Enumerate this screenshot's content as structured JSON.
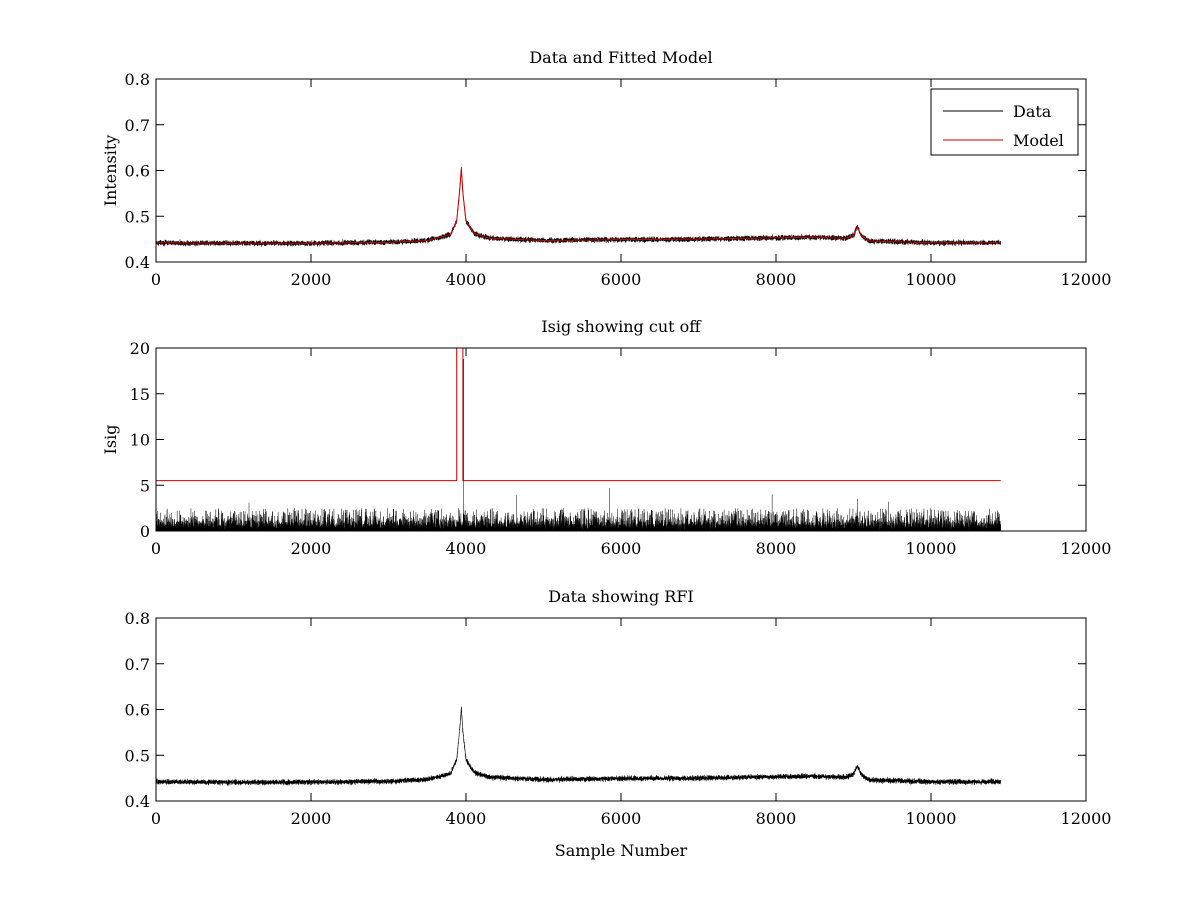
{
  "figure": {
    "background": "#ffffff",
    "colors": {
      "data": "#000000",
      "model": "#cc0000",
      "axes": "#000000"
    }
  },
  "chart_data": [
    {
      "id": "top",
      "type": "line",
      "title": "Data and Fitted Model",
      "xlabel": "",
      "ylabel": "Intensity",
      "xlim": [
        0,
        12000
      ],
      "ylim": [
        0.4,
        0.8
      ],
      "xticks": [
        0,
        2000,
        4000,
        6000,
        8000,
        10000,
        12000
      ],
      "xtick_labels": [
        "0",
        "2000",
        "4000",
        "6000",
        "8000",
        "10000",
        "12000"
      ],
      "yticks": [
        0.4,
        0.5,
        0.6,
        0.7,
        0.8
      ],
      "ytick_labels": [
        "0.4",
        "0.5",
        "0.6",
        "0.7",
        "0.8"
      ],
      "grid": false,
      "legend": {
        "placement": "top-right",
        "entries": [
          "Data",
          "Model"
        ]
      },
      "series": [
        {
          "name": "Data",
          "color": "#000000",
          "kind": "noisy",
          "n_points": 10900,
          "noise_amplitude": 0.005,
          "x": [
            0,
            1000,
            2000,
            3000,
            3500,
            3800,
            3880,
            3920,
            3940,
            3960,
            4000,
            4100,
            4300,
            5000,
            6000,
            7000,
            8000,
            8500,
            8900,
            9000,
            9050,
            9100,
            9200,
            10000,
            10900
          ],
          "y": [
            0.442,
            0.441,
            0.441,
            0.443,
            0.447,
            0.46,
            0.49,
            0.56,
            0.605,
            0.55,
            0.49,
            0.463,
            0.452,
            0.447,
            0.449,
            0.45,
            0.453,
            0.454,
            0.452,
            0.458,
            0.477,
            0.458,
            0.446,
            0.442,
            0.442
          ]
        },
        {
          "name": "Model",
          "color": "#cc0000",
          "kind": "smooth",
          "x": [
            0,
            1000,
            2000,
            3000,
            3500,
            3800,
            3880,
            3920,
            3940,
            3960,
            4000,
            4100,
            4300,
            5000,
            6000,
            7000,
            8000,
            8500,
            8900,
            9000,
            9050,
            9100,
            9200,
            10000,
            10900
          ],
          "y": [
            0.442,
            0.441,
            0.441,
            0.443,
            0.447,
            0.46,
            0.49,
            0.56,
            0.605,
            0.55,
            0.49,
            0.463,
            0.452,
            0.447,
            0.449,
            0.45,
            0.453,
            0.454,
            0.452,
            0.458,
            0.477,
            0.458,
            0.446,
            0.442,
            0.442
          ]
        }
      ]
    },
    {
      "id": "middle",
      "type": "line",
      "title": "Isig showing cut off",
      "xlabel": "",
      "ylabel": "Isig",
      "xlim": [
        0,
        12000
      ],
      "ylim": [
        0,
        20
      ],
      "xticks": [
        0,
        2000,
        4000,
        6000,
        8000,
        10000,
        12000
      ],
      "xtick_labels": [
        "0",
        "2000",
        "4000",
        "6000",
        "8000",
        "10000",
        "12000"
      ],
      "yticks": [
        0,
        5,
        10,
        15,
        20
      ],
      "ytick_labels": [
        "0",
        "5",
        "10",
        "15",
        "20"
      ],
      "grid": false,
      "series": [
        {
          "name": "Isig",
          "color": "#000000",
          "kind": "spiky",
          "n_points": 10900,
          "max_typical": 2.5,
          "x": [
            0,
            10900
          ],
          "y": [
            0,
            0
          ],
          "spikes": [
            {
              "x": 5850,
              "y": 4.7
            },
            {
              "x": 7950,
              "y": 4.0
            },
            {
              "x": 4650,
              "y": 3.9
            },
            {
              "x": 9050,
              "y": 3.5
            },
            {
              "x": 9450,
              "y": 3.2
            },
            {
              "x": 1200,
              "y": 3.1
            },
            {
              "x": 3970,
              "y": 18.8
            }
          ]
        },
        {
          "name": "Cut off",
          "color": "#cc0000",
          "kind": "step",
          "x": [
            0,
            3880,
            3880,
            3960,
            3960,
            10900
          ],
          "y": [
            5.5,
            5.5,
            20,
            20,
            5.5,
            5.5
          ]
        }
      ]
    },
    {
      "id": "bottom",
      "type": "line",
      "title": "Data showing RFI",
      "xlabel": "Sample Number",
      "ylabel": "",
      "xlim": [
        0,
        12000
      ],
      "ylim": [
        0.4,
        0.8
      ],
      "xticks": [
        0,
        2000,
        4000,
        6000,
        8000,
        10000,
        12000
      ],
      "xtick_labels": [
        "0",
        "2000",
        "4000",
        "6000",
        "8000",
        "10000",
        "12000"
      ],
      "yticks": [
        0.4,
        0.5,
        0.6,
        0.7,
        0.8
      ],
      "ytick_labels": [
        "0.4",
        "0.5",
        "0.6",
        "0.7",
        "0.8"
      ],
      "grid": false,
      "series": [
        {
          "name": "Data",
          "color": "#000000",
          "kind": "noisy",
          "n_points": 10900,
          "noise_amplitude": 0.005,
          "x": [
            0,
            1000,
            2000,
            3000,
            3500,
            3800,
            3880,
            3920,
            3940,
            3960,
            4000,
            4100,
            4300,
            5000,
            6000,
            7000,
            8000,
            8500,
            8900,
            9000,
            9050,
            9100,
            9200,
            10000,
            10900
          ],
          "y": [
            0.442,
            0.441,
            0.441,
            0.443,
            0.447,
            0.46,
            0.49,
            0.56,
            0.605,
            0.55,
            0.49,
            0.463,
            0.452,
            0.447,
            0.449,
            0.45,
            0.453,
            0.454,
            0.452,
            0.458,
            0.477,
            0.458,
            0.446,
            0.442,
            0.442
          ]
        }
      ]
    }
  ]
}
